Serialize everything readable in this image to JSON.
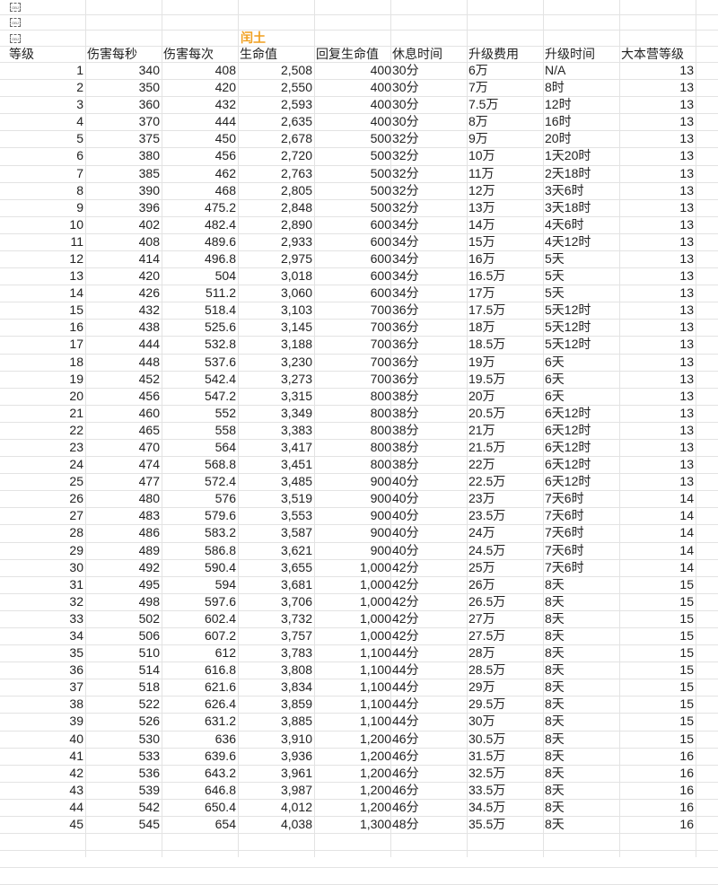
{
  "sheet": {
    "title": "闰土",
    "title_color": "#f0a020",
    "object_placeholders": [
      "obj-icon",
      "obj-icon",
      "obj-icon"
    ],
    "headers": [
      "等级",
      "伤害每秒",
      "伤害每次",
      "生命值",
      "回复生命值",
      "休息时间",
      "升级费用",
      "升级时间",
      "大本营等级"
    ],
    "rows": [
      [
        "1",
        "340",
        "408",
        "2,508",
        "400",
        "30分",
        "6万",
        "N/A",
        "13"
      ],
      [
        "2",
        "350",
        "420",
        "2,550",
        "400",
        "30分",
        "7万",
        "8时",
        "13"
      ],
      [
        "3",
        "360",
        "432",
        "2,593",
        "400",
        "30分",
        "7.5万",
        "12时",
        "13"
      ],
      [
        "4",
        "370",
        "444",
        "2,635",
        "400",
        "30分",
        "8万",
        "16时",
        "13"
      ],
      [
        "5",
        "375",
        "450",
        "2,678",
        "500",
        "32分",
        "9万",
        "20时",
        "13"
      ],
      [
        "6",
        "380",
        "456",
        "2,720",
        "500",
        "32分",
        "10万",
        "1天20时",
        "13"
      ],
      [
        "7",
        "385",
        "462",
        "2,763",
        "500",
        "32分",
        "11万",
        "2天18时",
        "13"
      ],
      [
        "8",
        "390",
        "468",
        "2,805",
        "500",
        "32分",
        "12万",
        "3天6时",
        "13"
      ],
      [
        "9",
        "396",
        "475.2",
        "2,848",
        "500",
        "32分",
        "13万",
        "3天18时",
        "13"
      ],
      [
        "10",
        "402",
        "482.4",
        "2,890",
        "600",
        "34分",
        "14万",
        "4天6时",
        "13"
      ],
      [
        "11",
        "408",
        "489.6",
        "2,933",
        "600",
        "34分",
        "15万",
        "4天12时",
        "13"
      ],
      [
        "12",
        "414",
        "496.8",
        "2,975",
        "600",
        "34分",
        "16万",
        "5天",
        "13"
      ],
      [
        "13",
        "420",
        "504",
        "3,018",
        "600",
        "34分",
        "16.5万",
        "5天",
        "13"
      ],
      [
        "14",
        "426",
        "511.2",
        "3,060",
        "600",
        "34分",
        "17万",
        "5天",
        "13"
      ],
      [
        "15",
        "432",
        "518.4",
        "3,103",
        "700",
        "36分",
        "17.5万",
        "5天12时",
        "13"
      ],
      [
        "16",
        "438",
        "525.6",
        "3,145",
        "700",
        "36分",
        "18万",
        "5天12时",
        "13"
      ],
      [
        "17",
        "444",
        "532.8",
        "3,188",
        "700",
        "36分",
        "18.5万",
        "5天12时",
        "13"
      ],
      [
        "18",
        "448",
        "537.6",
        "3,230",
        "700",
        "36分",
        "19万",
        "6天",
        "13"
      ],
      [
        "19",
        "452",
        "542.4",
        "3,273",
        "700",
        "36分",
        "19.5万",
        "6天",
        "13"
      ],
      [
        "20",
        "456",
        "547.2",
        "3,315",
        "800",
        "38分",
        "20万",
        "6天",
        "13"
      ],
      [
        "21",
        "460",
        "552",
        "3,349",
        "800",
        "38分",
        "20.5万",
        "6天12时",
        "13"
      ],
      [
        "22",
        "465",
        "558",
        "3,383",
        "800",
        "38分",
        "21万",
        "6天12时",
        "13"
      ],
      [
        "23",
        "470",
        "564",
        "3,417",
        "800",
        "38分",
        "21.5万",
        "6天12时",
        "13"
      ],
      [
        "24",
        "474",
        "568.8",
        "3,451",
        "800",
        "38分",
        "22万",
        "6天12时",
        "13"
      ],
      [
        "25",
        "477",
        "572.4",
        "3,485",
        "900",
        "40分",
        "22.5万",
        "6天12时",
        "13"
      ],
      [
        "26",
        "480",
        "576",
        "3,519",
        "900",
        "40分",
        "23万",
        "7天6时",
        "14"
      ],
      [
        "27",
        "483",
        "579.6",
        "3,553",
        "900",
        "40分",
        "23.5万",
        "7天6时",
        "14"
      ],
      [
        "28",
        "486",
        "583.2",
        "3,587",
        "900",
        "40分",
        "24万",
        "7天6时",
        "14"
      ],
      [
        "29",
        "489",
        "586.8",
        "3,621",
        "900",
        "40分",
        "24.5万",
        "7天6时",
        "14"
      ],
      [
        "30",
        "492",
        "590.4",
        "3,655",
        "1,000",
        "42分",
        "25万",
        "7天6时",
        "14"
      ],
      [
        "31",
        "495",
        "594",
        "3,681",
        "1,000",
        "42分",
        "26万",
        "8天",
        "15"
      ],
      [
        "32",
        "498",
        "597.6",
        "3,706",
        "1,000",
        "42分",
        "26.5万",
        "8天",
        "15"
      ],
      [
        "33",
        "502",
        "602.4",
        "3,732",
        "1,000",
        "42分",
        "27万",
        "8天",
        "15"
      ],
      [
        "34",
        "506",
        "607.2",
        "3,757",
        "1,000",
        "42分",
        "27.5万",
        "8天",
        "15"
      ],
      [
        "35",
        "510",
        "612",
        "3,783",
        "1,100",
        "44分",
        "28万",
        "8天",
        "15"
      ],
      [
        "36",
        "514",
        "616.8",
        "3,808",
        "1,100",
        "44分",
        "28.5万",
        "8天",
        "15"
      ],
      [
        "37",
        "518",
        "621.6",
        "3,834",
        "1,100",
        "44分",
        "29万",
        "8天",
        "15"
      ],
      [
        "38",
        "522",
        "626.4",
        "3,859",
        "1,100",
        "44分",
        "29.5万",
        "8天",
        "15"
      ],
      [
        "39",
        "526",
        "631.2",
        "3,885",
        "1,100",
        "44分",
        "30万",
        "8天",
        "15"
      ],
      [
        "40",
        "530",
        "636",
        "3,910",
        "1,200",
        "46分",
        "30.5万",
        "8天",
        "15"
      ],
      [
        "41",
        "533",
        "639.6",
        "3,936",
        "1,200",
        "46分",
        "31.5万",
        "8天",
        "16"
      ],
      [
        "42",
        "536",
        "643.2",
        "3,961",
        "1,200",
        "46分",
        "32.5万",
        "8天",
        "16"
      ],
      [
        "43",
        "539",
        "646.8",
        "3,987",
        "1,200",
        "46分",
        "33.5万",
        "8天",
        "16"
      ],
      [
        "44",
        "542",
        "650.4",
        "4,012",
        "1,200",
        "46分",
        "34.5万",
        "8天",
        "16"
      ],
      [
        "45",
        "545",
        "654",
        "4,038",
        "1,300",
        "48分",
        "35.5万",
        "8天",
        "16"
      ]
    ]
  }
}
